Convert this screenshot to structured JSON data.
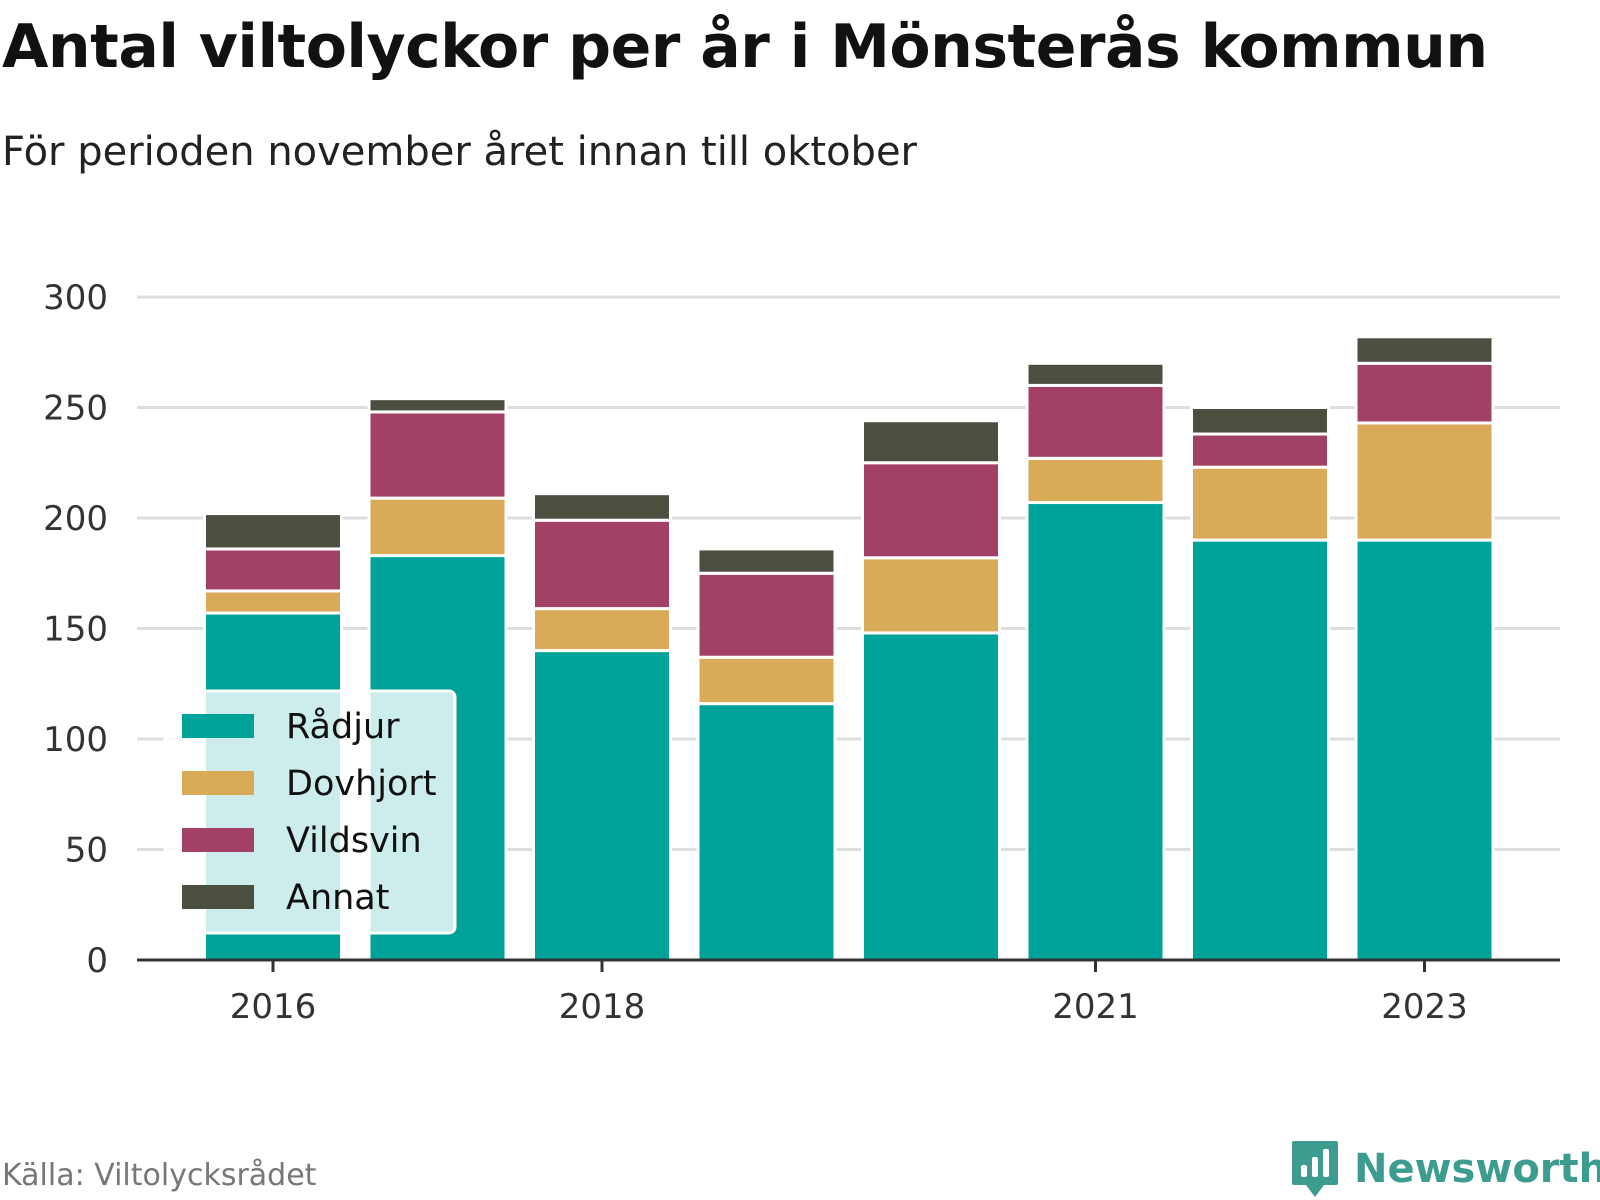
{
  "title": "Antal viltolyckor per år i Mönsterås kommun",
  "subtitle": "För perioden november året innan till oktober",
  "source": "Källa: Viltolycksrådet",
  "brand": "Newsworthy",
  "chart_data": {
    "type": "bar",
    "stacked": true,
    "categories": [
      "2016",
      "2017",
      "2018",
      "2019",
      "2020",
      "2021",
      "2022",
      "2023"
    ],
    "x_tick_labels": [
      "2016",
      "2018",
      "2021",
      "2023"
    ],
    "y_ticks": [
      0,
      50,
      100,
      150,
      200,
      250,
      300
    ],
    "ylim": [
      0,
      300
    ],
    "grid": true,
    "legend_position": "bottom-left, inside plot",
    "series": [
      {
        "name": "Rådjur",
        "color": "#00a39a",
        "values": [
          157,
          183,
          140,
          116,
          148,
          207,
          190,
          190
        ]
      },
      {
        "name": "Dovhjort",
        "color": "#d9ab59",
        "values": [
          10,
          26,
          19,
          21,
          34,
          20,
          33,
          53
        ]
      },
      {
        "name": "Vildsvin",
        "color": "#a34066",
        "values": [
          19,
          39,
          40,
          38,
          43,
          33,
          15,
          27
        ]
      },
      {
        "name": "Annat",
        "color": "#4b4f40",
        "values": [
          16,
          6,
          12,
          11,
          19,
          10,
          12,
          12
        ]
      }
    ]
  }
}
